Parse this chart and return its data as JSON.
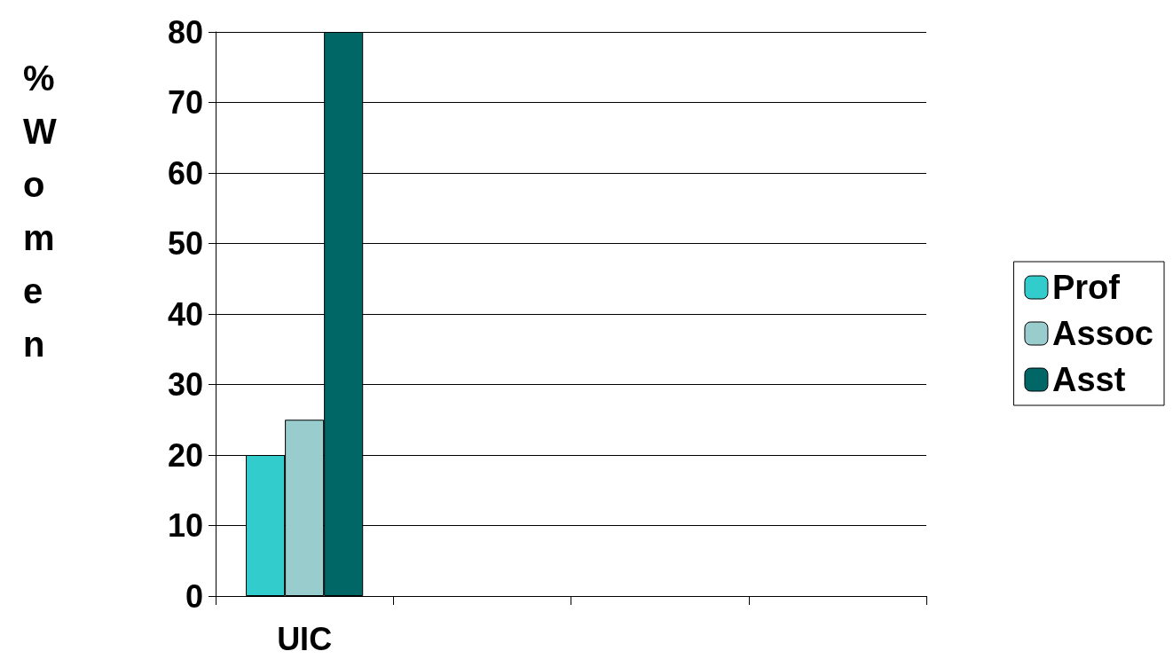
{
  "chart_data": {
    "type": "bar",
    "ylabel": "% Women",
    "categories": [
      "UIC",
      null,
      null,
      null
    ],
    "series": [
      {
        "name": "Prof",
        "color": "#33cccc",
        "values": [
          20,
          null,
          null,
          null
        ]
      },
      {
        "name": "Assoc",
        "color": "#99cccc",
        "values": [
          25,
          null,
          null,
          null
        ]
      },
      {
        "name": "Asst",
        "color": "#006666",
        "values": [
          80,
          null,
          null,
          null
        ]
      }
    ],
    "ylim": [
      0,
      80
    ],
    "yticks": [
      0,
      10,
      20,
      30,
      40,
      50,
      60,
      70,
      80
    ],
    "grid": "y",
    "legend": "right"
  }
}
